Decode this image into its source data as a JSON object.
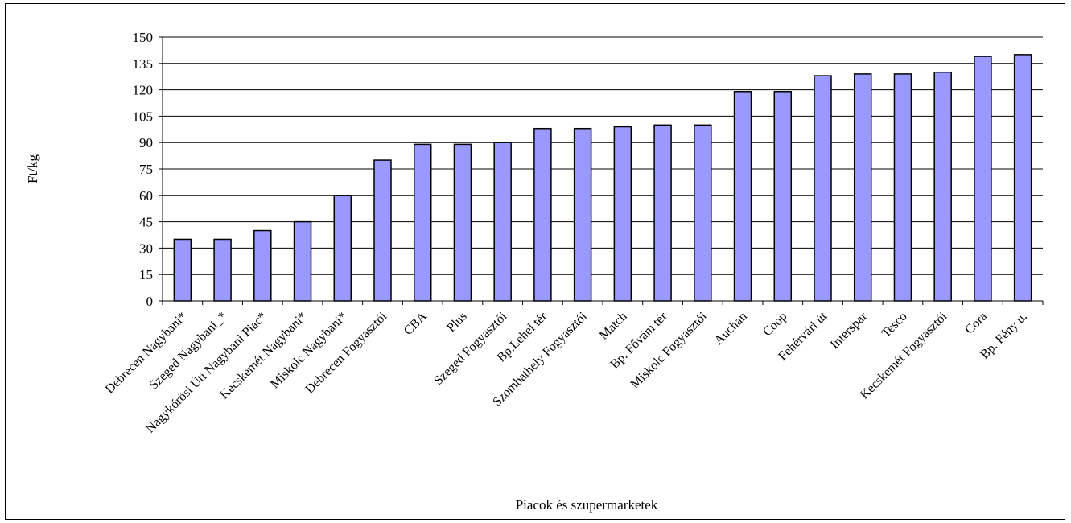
{
  "chart_data": {
    "type": "bar",
    "title": "",
    "xlabel": "Piacok és szupermarketek",
    "ylabel": "Ft/kg",
    "ylim": [
      0,
      150
    ],
    "yticks": [
      0,
      15,
      30,
      45,
      60,
      75,
      90,
      105,
      120,
      135,
      150
    ],
    "grid": true,
    "legend": "none",
    "categories": [
      "Debrecen Nagybani*",
      "Szeged Nagybani_*",
      "Nagykőrösi Úti Nagybani Piac*",
      "Kecskemét Nagybani*",
      "Miskolc  Nagybani*",
      "Debrecen  Fogyasztói",
      "CBA",
      "Plus",
      "Szeged Fogyasztói",
      "Bp.Lehel tér",
      "Szombathely Fogyasztói",
      "Match",
      "Bp. Fővám tér",
      "Miskolc Fogyasztói",
      "Auchan",
      "Coop",
      "Fehérvári út",
      "Interspar",
      "Tesco",
      "Kecskemét Fogyasztói",
      "Cora",
      "Bp. Fény u."
    ],
    "values": [
      35,
      35,
      40,
      45,
      60,
      80,
      89,
      89,
      90,
      98,
      98,
      99,
      100,
      100,
      119,
      119,
      128,
      129,
      129,
      130,
      139,
      140
    ],
    "bar_color": "#9999ff",
    "bar_stroke": "#000000"
  }
}
